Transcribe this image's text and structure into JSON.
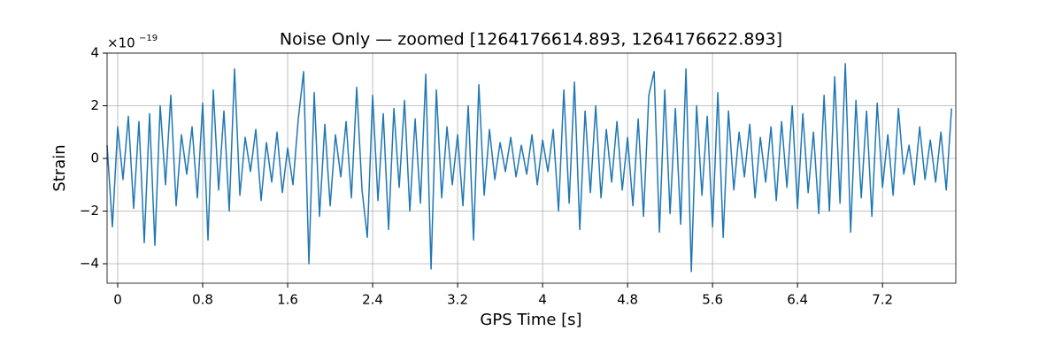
{
  "chart_data": {
    "type": "line",
    "title": "Noise Only — zoomed [1264176614.893, 1264176622.893]",
    "x_label": "GPS Time [s]",
    "y_label": "Strain",
    "y_multiplier": "×10",
    "y_exponent": "−19",
    "color": "#1f77b4",
    "grid": true,
    "xlim": [
      -0.1,
      7.89
    ],
    "ylim": [
      -4.74,
      4
    ],
    "xticks": [
      0,
      0.8,
      1.6,
      2.4,
      3.2,
      4,
      4.8,
      5.6,
      6.4,
      7.2
    ],
    "yticks": [
      {
        "value": -4,
        "label": "−4"
      },
      {
        "value": -2,
        "label": "−2"
      },
      0,
      2,
      4
    ],
    "x": [
      -0.1,
      -0.05,
      0,
      0.05,
      0.1,
      0.15,
      0.2,
      0.25,
      0.3,
      0.35,
      0.4,
      0.45,
      0.5,
      0.55,
      0.6,
      0.65,
      0.7,
      0.75,
      0.8,
      0.85,
      0.9,
      0.95,
      1.0,
      1.05,
      1.1,
      1.15,
      1.2,
      1.25,
      1.3,
      1.35,
      1.4,
      1.45,
      1.5,
      1.55,
      1.6,
      1.65,
      1.7,
      1.75,
      1.8,
      1.85,
      1.9,
      1.95,
      2.0,
      2.05,
      2.1,
      2.15,
      2.2,
      2.25,
      2.3,
      2.35,
      2.4,
      2.45,
      2.5,
      2.55,
      2.6,
      2.65,
      2.7,
      2.75,
      2.8,
      2.85,
      2.9,
      2.95,
      3.0,
      3.05,
      3.1,
      3.15,
      3.2,
      3.25,
      3.3,
      3.35,
      3.4,
      3.45,
      3.5,
      3.55,
      3.6,
      3.65,
      3.7,
      3.75,
      3.8,
      3.85,
      3.9,
      3.95,
      4.0,
      4.05,
      4.1,
      4.15,
      4.2,
      4.25,
      4.3,
      4.35,
      4.4,
      4.45,
      4.5,
      4.55,
      4.6,
      4.65,
      4.7,
      4.75,
      4.8,
      4.85,
      4.9,
      4.95,
      5.0,
      5.05,
      5.1,
      5.15,
      5.2,
      5.25,
      5.3,
      5.35,
      5.4,
      5.45,
      5.5,
      5.55,
      5.6,
      5.65,
      5.7,
      5.75,
      5.8,
      5.85,
      5.9,
      5.95,
      6.0,
      6.05,
      6.1,
      6.15,
      6.2,
      6.25,
      6.3,
      6.35,
      6.4,
      6.45,
      6.5,
      6.55,
      6.6,
      6.65,
      6.7,
      6.75,
      6.8,
      6.85,
      6.9,
      6.95,
      7.0,
      7.05,
      7.1,
      7.15,
      7.2,
      7.25,
      7.3,
      7.35,
      7.4,
      7.45,
      7.5,
      7.55,
      7.6,
      7.65,
      7.7,
      7.75,
      7.8,
      7.85
    ],
    "values": [
      0.5,
      -2.6,
      1.2,
      -0.8,
      1.6,
      -1.9,
      1.4,
      -3.2,
      1.7,
      -3.3,
      2.0,
      -1.0,
      2.4,
      -1.8,
      0.9,
      -0.6,
      1.2,
      -1.5,
      2.1,
      -3.1,
      2.6,
      -1.2,
      1.8,
      -2.0,
      3.4,
      -1.4,
      0.8,
      -0.5,
      1.1,
      -1.6,
      0.6,
      -0.9,
      1.0,
      -1.3,
      0.4,
      -1.0,
      1.5,
      3.3,
      -4.0,
      2.5,
      -2.2,
      1.3,
      -1.8,
      0.9,
      -0.7,
      1.4,
      -1.5,
      2.7,
      -1.2,
      -3.0,
      2.4,
      -1.6,
      1.7,
      -2.7,
      1.9,
      -1.1,
      2.2,
      -2.0,
      1.5,
      -1.7,
      3.2,
      -4.2,
      2.6,
      -1.5,
      1.2,
      -1.0,
      0.9,
      -1.8,
      2.0,
      -3.1,
      2.8,
      -1.4,
      1.1,
      -0.8,
      0.6,
      -0.5,
      0.8,
      -0.7,
      0.5,
      -0.6,
      0.9,
      -1.0,
      0.7,
      -0.5,
      1.1,
      -2.0,
      2.6,
      -1.7,
      2.9,
      -2.7,
      1.8,
      -1.3,
      2.0,
      -1.5,
      1.1,
      -0.9,
      1.4,
      -1.2,
      0.8,
      -1.8,
      1.5,
      -2.2,
      2.4,
      3.3,
      -2.8,
      2.6,
      -2.1,
      1.9,
      -2.5,
      3.4,
      -4.3,
      2.0,
      -1.4,
      1.6,
      -2.6,
      2.5,
      -3.0,
      1.8,
      -1.2,
      1.0,
      -0.7,
      1.3,
      -1.5,
      0.8,
      -0.9,
      1.2,
      -1.6,
      1.4,
      -1.1,
      2.0,
      -1.9,
      1.7,
      -1.3,
      1.0,
      -2.1,
      2.4,
      -2.0,
      3.1,
      -1.7,
      3.6,
      -2.8,
      2.2,
      -1.5,
      1.8,
      -2.2,
      2.1,
      -1.1,
      0.9,
      -1.4,
      1.9,
      -0.6,
      0.5,
      -1.0,
      1.2,
      -0.8,
      0.7,
      -0.9,
      1.0,
      -1.2,
      1.9
    ]
  }
}
